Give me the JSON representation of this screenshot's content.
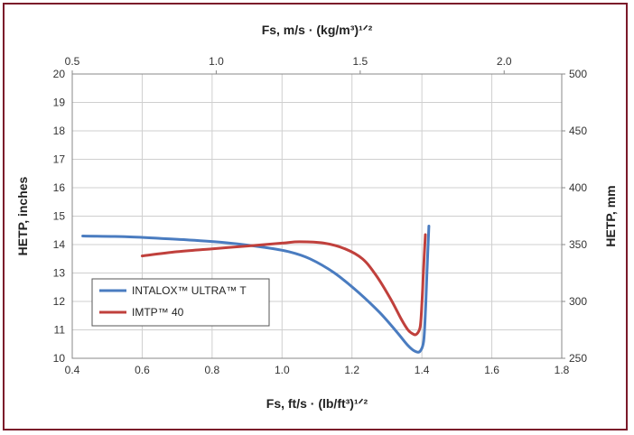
{
  "chart_data": {
    "type": "line",
    "title": "",
    "xlabel_bottom": "Fs, ft/s · (lb/ft³)¹ᐟ²",
    "xlabel_top": "Fs, m/s · (kg/m³)¹ᐟ²",
    "ylabel_left": "HETP, inches",
    "ylabel_right": "HETP, mm",
    "x_bottom": {
      "min": 0.4,
      "max": 1.8,
      "ticks": [
        0.4,
        0.6,
        0.8,
        1.0,
        1.2,
        1.4,
        1.6,
        1.8
      ],
      "tick_labels": [
        "0.4",
        "0.6",
        "0.8",
        "1.0",
        "1.2",
        "1.4",
        "1.6",
        "1.8"
      ]
    },
    "x_top": {
      "min": 0.5,
      "max": 2.2,
      "ticks": [
        0.5,
        1.0,
        1.5,
        2.0
      ],
      "tick_labels": [
        "0.5",
        "1.0",
        "1.5",
        "2.0"
      ]
    },
    "y_left": {
      "min": 10,
      "max": 20,
      "ticks": [
        10,
        11,
        12,
        13,
        14,
        15,
        16,
        17,
        18,
        19,
        20
      ],
      "tick_labels": [
        "10",
        "11",
        "12",
        "13",
        "14",
        "15",
        "16",
        "17",
        "18",
        "19",
        "20"
      ]
    },
    "y_right": {
      "min": 250,
      "max": 500,
      "ticks": [
        250,
        300,
        350,
        400,
        450,
        500
      ],
      "tick_labels": [
        "250",
        "300",
        "350",
        "400",
        "450",
        "500"
      ]
    },
    "grid": true,
    "legend_position": "lower-left",
    "series": [
      {
        "name": "INTALOX™ ULTRA™ T",
        "color": "#4a7cc0",
        "x": [
          0.43,
          0.55,
          0.65,
          0.75,
          0.85,
          0.95,
          1.02,
          1.08,
          1.15,
          1.22,
          1.28,
          1.33,
          1.36,
          1.38,
          1.395,
          1.405,
          1.41,
          1.415,
          1.42
        ],
        "y": [
          14.3,
          14.28,
          14.22,
          14.15,
          14.05,
          13.9,
          13.75,
          13.5,
          13.0,
          12.3,
          11.6,
          10.9,
          10.45,
          10.25,
          10.25,
          10.6,
          11.6,
          13.2,
          14.65
        ]
      },
      {
        "name": "IMTP™ 40",
        "color": "#c0403c",
        "x": [
          0.6,
          0.7,
          0.8,
          0.9,
          1.0,
          1.05,
          1.12,
          1.18,
          1.23,
          1.27,
          1.31,
          1.34,
          1.36,
          1.375,
          1.385,
          1.395,
          1.4,
          1.405,
          1.41
        ],
        "y": [
          13.6,
          13.75,
          13.85,
          13.95,
          14.05,
          14.1,
          14.05,
          13.85,
          13.5,
          12.9,
          12.1,
          11.4,
          11.0,
          10.85,
          10.85,
          11.1,
          11.9,
          13.2,
          14.35
        ]
      }
    ]
  }
}
